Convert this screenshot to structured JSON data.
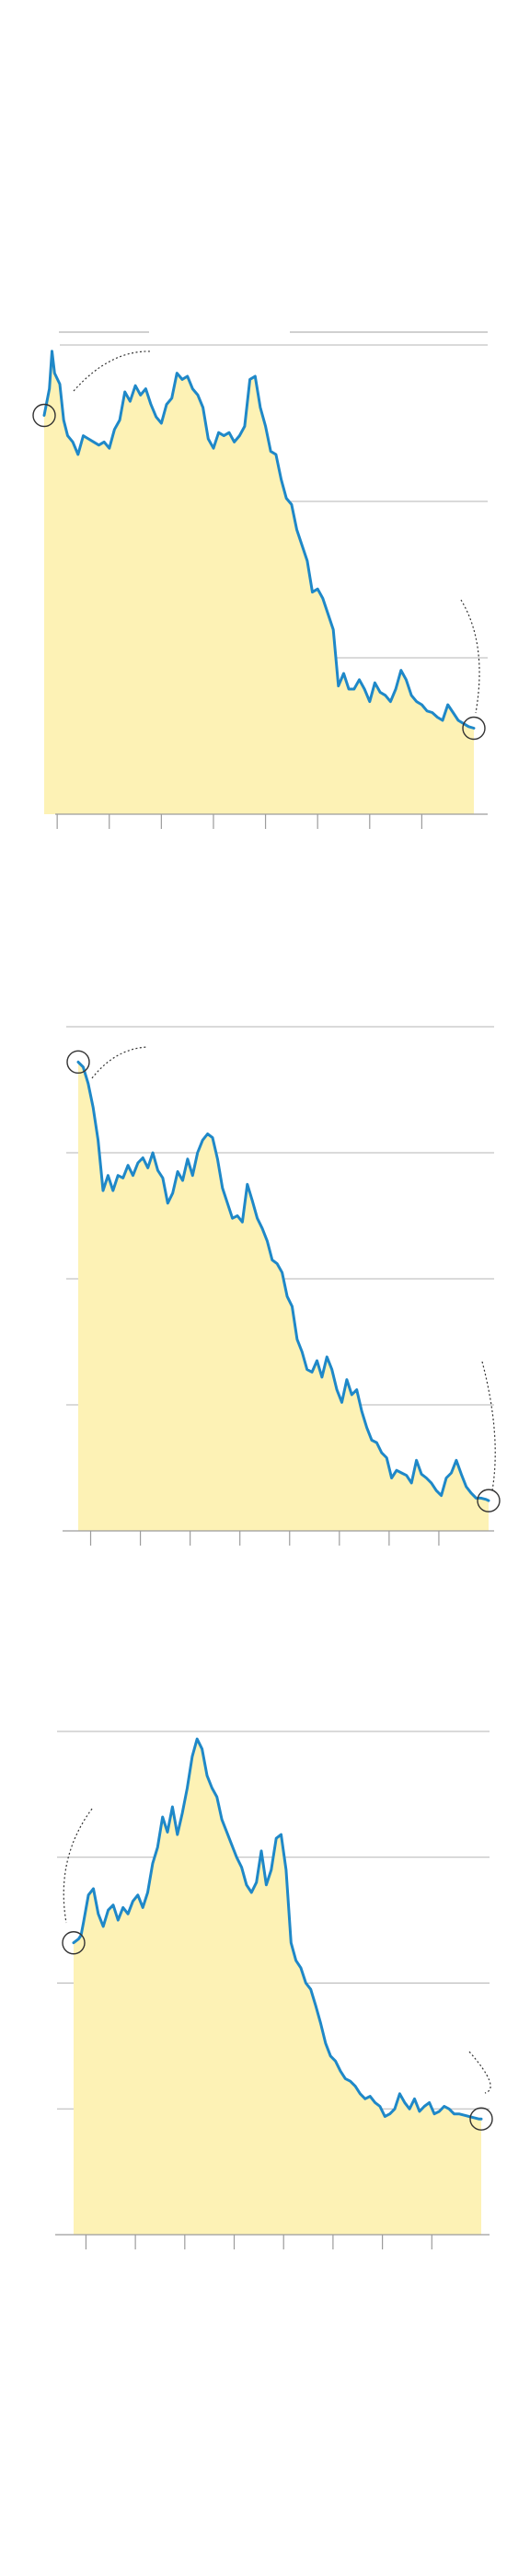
{
  "colors": {
    "line": "#1f88c8",
    "area": "#fdf2b5",
    "grid": "#b5b5b5",
    "axis": "#9c9c9c",
    "marker": "#333333"
  },
  "chart_data": [
    {
      "type": "area",
      "title": "",
      "xlabel": "",
      "ylabel": "",
      "grid": true,
      "xlim": [
        0,
        330
      ],
      "ylim": [
        0,
        3
      ],
      "xticks": [
        10,
        50,
        90,
        130,
        170,
        210,
        250,
        290
      ],
      "yticks": [
        1,
        2,
        3
      ],
      "series": [
        {
          "x": [
            0,
            4,
            6,
            8,
            12,
            15,
            18,
            22,
            26,
            30,
            34,
            38,
            42,
            46,
            50,
            54,
            58,
            62,
            66,
            70,
            74,
            78,
            82,
            86,
            90,
            94,
            98,
            102,
            106,
            110,
            114,
            118,
            122,
            126,
            130,
            134,
            138,
            142,
            146,
            150,
            154,
            158,
            162,
            166,
            170,
            174,
            178,
            182,
            186,
            190,
            194,
            198,
            202,
            206,
            210,
            214,
            218,
            222,
            226,
            230,
            234,
            238,
            242,
            246,
            250,
            254,
            258,
            262,
            266,
            270,
            274,
            278,
            282,
            286,
            290,
            294,
            298,
            302,
            306,
            310,
            314,
            318,
            322,
            326,
            330
          ],
          "y": [
            2.55,
            2.72,
            2.96,
            2.82,
            2.75,
            2.52,
            2.42,
            2.38,
            2.3,
            2.42,
            2.4,
            2.38,
            2.36,
            2.38,
            2.34,
            2.46,
            2.52,
            2.7,
            2.64,
            2.74,
            2.68,
            2.72,
            2.62,
            2.54,
            2.5,
            2.62,
            2.66,
            2.82,
            2.78,
            2.8,
            2.72,
            2.68,
            2.6,
            2.4,
            2.34,
            2.44,
            2.42,
            2.44,
            2.38,
            2.42,
            2.48,
            2.78,
            2.8,
            2.6,
            2.48,
            2.32,
            2.3,
            2.14,
            2.02,
            1.98,
            1.82,
            1.72,
            1.62,
            1.42,
            1.44,
            1.38,
            1.28,
            1.18,
            0.82,
            0.9,
            0.8,
            0.8,
            0.86,
            0.8,
            0.72,
            0.84,
            0.78,
            0.76,
            0.72,
            0.8,
            0.92,
            0.86,
            0.76,
            0.72,
            0.7,
            0.66,
            0.65,
            0.62,
            0.6,
            0.7,
            0.65,
            0.6,
            0.58,
            0.56,
            0.55
          ]
        }
      ]
    },
    {
      "type": "area",
      "title": "",
      "xlabel": "",
      "ylabel": "",
      "grid": true,
      "xlim": [
        0,
        330
      ],
      "ylim": [
        0,
        4
      ],
      "xticks": [
        10,
        50,
        90,
        130,
        170,
        210,
        250,
        290
      ],
      "yticks": [
        1,
        2,
        3,
        4
      ],
      "series": [
        {
          "x": [
            0,
            4,
            8,
            12,
            16,
            20,
            24,
            28,
            32,
            36,
            40,
            44,
            48,
            52,
            56,
            60,
            64,
            68,
            72,
            76,
            80,
            84,
            88,
            92,
            96,
            100,
            104,
            108,
            112,
            116,
            120,
            124,
            128,
            132,
            136,
            140,
            144,
            148,
            152,
            156,
            160,
            164,
            168,
            172,
            176,
            180,
            184,
            188,
            192,
            196,
            200,
            204,
            208,
            212,
            216,
            220,
            224,
            228,
            232,
            236,
            240,
            244,
            248,
            252,
            256,
            260,
            264,
            268,
            272,
            276,
            280,
            284,
            288,
            292,
            296,
            300,
            304,
            308,
            312,
            316,
            320,
            324,
            328,
            330
          ],
          "y": [
            3.72,
            3.68,
            3.55,
            3.36,
            3.1,
            2.7,
            2.82,
            2.7,
            2.82,
            2.8,
            2.9,
            2.82,
            2.92,
            2.96,
            2.88,
            3.0,
            2.86,
            2.8,
            2.6,
            2.68,
            2.85,
            2.78,
            2.95,
            2.82,
            3.0,
            3.1,
            3.15,
            3.12,
            2.95,
            2.72,
            2.6,
            2.48,
            2.5,
            2.45,
            2.75,
            2.62,
            2.48,
            2.4,
            2.3,
            2.15,
            2.12,
            2.05,
            1.86,
            1.78,
            1.52,
            1.42,
            1.28,
            1.26,
            1.35,
            1.22,
            1.38,
            1.28,
            1.12,
            1.02,
            1.2,
            1.08,
            1.12,
            0.95,
            0.82,
            0.72,
            0.7,
            0.62,
            0.58,
            0.42,
            0.48,
            0.46,
            0.44,
            0.38,
            0.56,
            0.45,
            0.42,
            0.38,
            0.32,
            0.28,
            0.42,
            0.46,
            0.56,
            0.45,
            0.35,
            0.3,
            0.26,
            0.26,
            0.25,
            0.24
          ]
        }
      ]
    },
    {
      "type": "area",
      "title": "",
      "xlabel": "",
      "ylabel": "",
      "grid": true,
      "xlim": [
        0,
        330
      ],
      "ylim": [
        0,
        4
      ],
      "xticks": [
        10,
        50,
        90,
        130,
        170,
        210,
        250,
        290
      ],
      "yticks": [
        1,
        2,
        3,
        4
      ],
      "series": [
        {
          "x": [
            0,
            4,
            6,
            8,
            12,
            16,
            20,
            24,
            28,
            32,
            36,
            40,
            44,
            48,
            52,
            56,
            60,
            64,
            68,
            72,
            76,
            80,
            84,
            88,
            92,
            96,
            100,
            104,
            108,
            112,
            116,
            120,
            124,
            128,
            132,
            136,
            140,
            144,
            148,
            152,
            156,
            160,
            164,
            168,
            172,
            176,
            180,
            184,
            188,
            192,
            196,
            200,
            204,
            208,
            212,
            216,
            220,
            224,
            228,
            232,
            236,
            240,
            244,
            248,
            252,
            256,
            260,
            264,
            268,
            272,
            276,
            280,
            284,
            288,
            292,
            296,
            300,
            304,
            308,
            312,
            316,
            320,
            324,
            328,
            330
          ],
          "y": [
            2.32,
            2.35,
            2.38,
            2.48,
            2.7,
            2.75,
            2.55,
            2.45,
            2.58,
            2.62,
            2.5,
            2.6,
            2.55,
            2.65,
            2.7,
            2.6,
            2.72,
            2.95,
            3.08,
            3.32,
            3.2,
            3.4,
            3.18,
            3.35,
            3.55,
            3.8,
            3.94,
            3.86,
            3.65,
            3.55,
            3.48,
            3.3,
            3.2,
            3.1,
            3.0,
            2.92,
            2.78,
            2.72,
            2.8,
            3.05,
            2.78,
            2.9,
            3.15,
            3.18,
            2.9,
            2.32,
            2.18,
            2.12,
            2.0,
            1.95,
            1.82,
            1.68,
            1.52,
            1.42,
            1.38,
            1.3,
            1.24,
            1.22,
            1.18,
            1.12,
            1.08,
            1.1,
            1.05,
            1.02,
            0.94,
            0.96,
            1.0,
            1.12,
            1.05,
            1.0,
            1.08,
            0.98,
            1.02,
            1.05,
            0.96,
            0.98,
            1.02,
            1.0,
            0.96,
            0.96,
            0.95,
            0.94,
            0.93,
            0.92,
            0.92
          ]
        }
      ]
    }
  ]
}
